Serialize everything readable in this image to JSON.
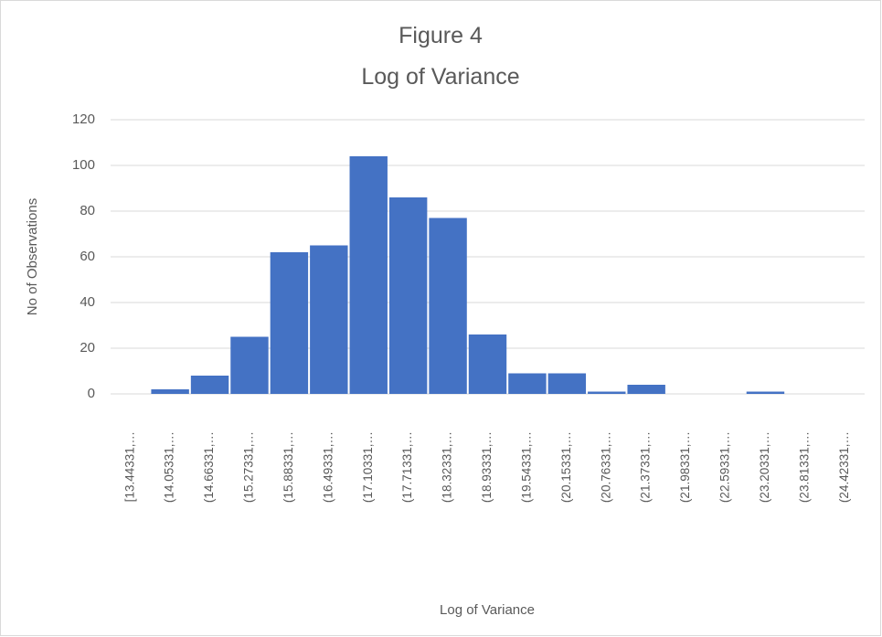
{
  "chart_data": {
    "type": "bar",
    "title": "Figure 4",
    "subtitle": "Log of Variance",
    "x_label": "Log of Variance",
    "y_label": "No of Observations",
    "categories": [
      "[13.44331,…",
      "(14.05331,…",
      "(14.66331,…",
      "(15.27331,…",
      "(15.88331,…",
      "(16.49331,…",
      "(17.10331,…",
      "(17.71331,…",
      "(18.32331,…",
      "(18.93331,…",
      "(19.54331,…",
      "(20.15331,…",
      "(20.76331,…",
      "(21.37331,…",
      "(21.98331,…",
      "(22.59331,…",
      "(23.20331,…",
      "(23.81331,…",
      "(24.42331,…"
    ],
    "values": [
      0,
      2,
      8,
      25,
      62,
      65,
      104,
      86,
      77,
      26,
      9,
      9,
      1,
      4,
      0,
      0,
      1,
      0,
      0
    ],
    "color": "#4472c4",
    "ylim": [
      0,
      120
    ],
    "yticks": [
      0,
      20,
      40,
      60,
      80,
      100,
      120
    ],
    "grid": true
  }
}
